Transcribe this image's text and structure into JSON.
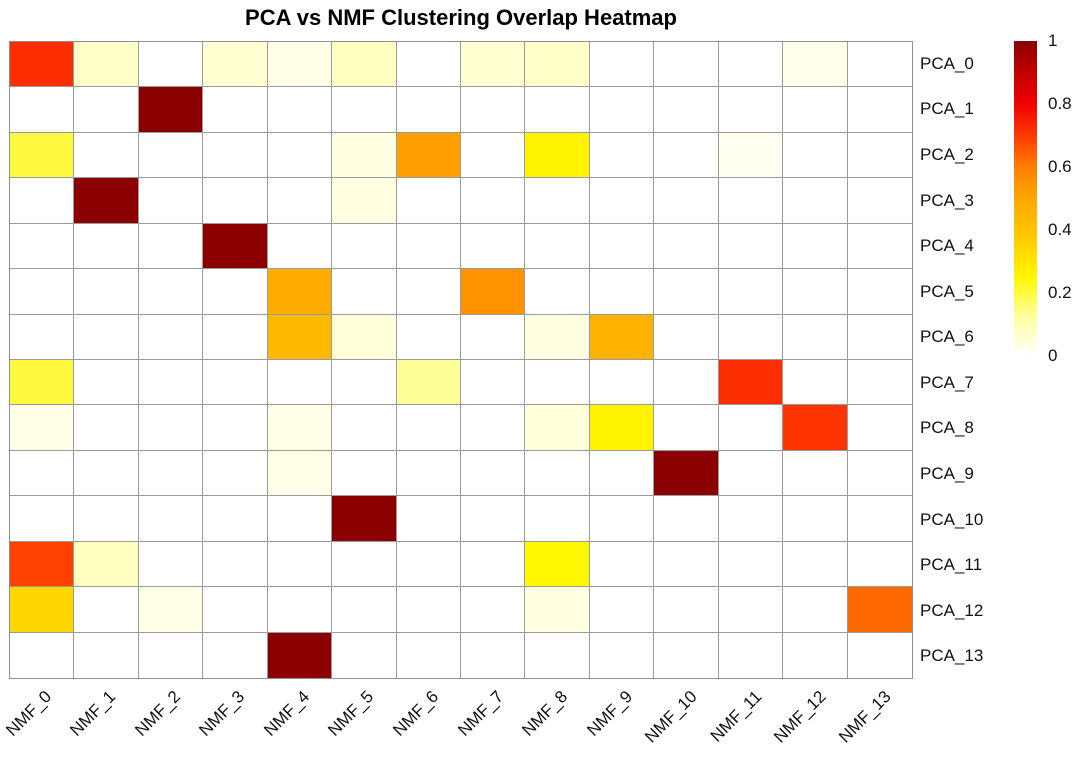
{
  "title": "PCA vs NMF Clustering Overlap Heatmap",
  "chart_data": {
    "type": "heatmap",
    "title": "PCA vs NMF Clustering Overlap Heatmap",
    "rows": [
      "PCA_0",
      "PCA_1",
      "PCA_2",
      "PCA_3",
      "PCA_4",
      "PCA_5",
      "PCA_6",
      "PCA_7",
      "PCA_8",
      "PCA_9",
      "PCA_10",
      "PCA_11",
      "PCA_12",
      "PCA_13"
    ],
    "columns": [
      "NMF_0",
      "NMF_1",
      "NMF_2",
      "NMF_3",
      "NMF_4",
      "NMF_5",
      "NMF_6",
      "NMF_7",
      "NMF_8",
      "NMF_9",
      "NMF_10",
      "NMF_11",
      "NMF_12",
      "NMF_13"
    ],
    "matrix": [
      [
        0.72,
        0.07,
        0,
        0.06,
        0.03,
        0.08,
        0,
        0.06,
        0.07,
        0,
        0,
        0,
        0.025,
        0
      ],
      [
        0,
        0,
        1,
        0,
        0,
        0,
        0,
        0,
        0,
        0,
        0,
        0,
        0,
        0
      ],
      [
        0.2,
        0,
        0,
        0,
        0,
        0.04,
        0.52,
        0,
        0.26,
        0,
        0,
        0.02,
        0,
        0
      ],
      [
        0,
        1,
        0,
        0,
        0,
        0.04,
        0,
        0,
        0,
        0,
        0,
        0,
        0,
        0
      ],
      [
        0,
        0,
        0,
        1,
        0,
        0,
        0,
        0,
        0,
        0,
        0,
        0,
        0,
        0
      ],
      [
        0,
        0,
        0,
        0,
        0.48,
        0,
        0,
        0.55,
        0,
        0,
        0,
        0,
        0,
        0
      ],
      [
        0,
        0,
        0,
        0,
        0.43,
        0.05,
        0,
        0,
        0.04,
        0.46,
        0,
        0,
        0,
        0
      ],
      [
        0.2,
        0,
        0,
        0,
        0,
        0,
        0.13,
        0,
        0,
        0,
        0,
        0.72,
        0,
        0
      ],
      [
        0.03,
        0,
        0,
        0,
        0.03,
        0,
        0,
        0,
        0.05,
        0.26,
        0,
        0,
        0.71,
        0
      ],
      [
        0,
        0,
        0,
        0,
        0.03,
        0,
        0,
        0,
        0,
        0,
        1,
        0,
        0,
        0
      ],
      [
        0,
        0,
        0,
        0,
        0,
        1,
        0,
        0,
        0,
        0,
        0,
        0,
        0,
        0
      ],
      [
        0.69,
        0.08,
        0,
        0,
        0,
        0,
        0,
        0,
        0.25,
        0,
        0,
        0,
        0,
        0
      ],
      [
        0.34,
        0,
        0.03,
        0,
        0,
        0,
        0,
        0,
        0.04,
        0,
        0,
        0,
        0,
        0.63
      ],
      [
        0,
        0,
        0,
        0,
        1,
        0,
        0,
        0,
        0,
        0,
        0,
        0,
        0,
        0
      ]
    ],
    "value_range": [
      0,
      1
    ],
    "colorbar_tick_labels": [
      "1",
      "0.8",
      "0.6",
      "0.4",
      "0.2",
      "0"
    ],
    "colorbar_tick_values": [
      1,
      0.8,
      0.6,
      0.4,
      0.2,
      0
    ],
    "legend_position": "right",
    "grid_on": true,
    "colors": {
      "grid_line": "#9b9b9b",
      "background": "#ffffff",
      "max_color": "#8b0000",
      "min_color": "#ffffff",
      "colormap_stops": [
        [
          0,
          "#ffffff"
        ],
        [
          0.125,
          "#ffffa0"
        ],
        [
          0.25,
          "#fff700"
        ],
        [
          0.4,
          "#ffc200"
        ],
        [
          0.5,
          "#ffa700"
        ],
        [
          0.6,
          "#ff7e00"
        ],
        [
          0.7,
          "#ff3a00"
        ],
        [
          0.8,
          "#f20000"
        ],
        [
          0.9,
          "#c20000"
        ],
        [
          1,
          "#8b0000"
        ]
      ]
    }
  }
}
